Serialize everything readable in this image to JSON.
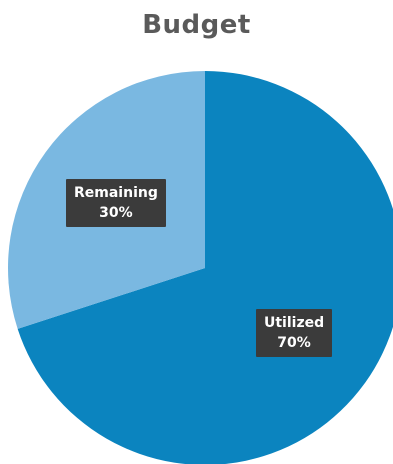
{
  "chart_data": {
    "type": "pie",
    "title": "Budget",
    "slices": [
      {
        "name": "Utilized",
        "value": 70,
        "label": "70%",
        "color": "#0b84bf"
      },
      {
        "name": "Remaining",
        "value": 30,
        "label": "30%",
        "color": "#7ab8e1"
      }
    ],
    "start_angle_deg": 0,
    "direction": "clockwise",
    "legend": "none",
    "label_style": "dark-box"
  }
}
